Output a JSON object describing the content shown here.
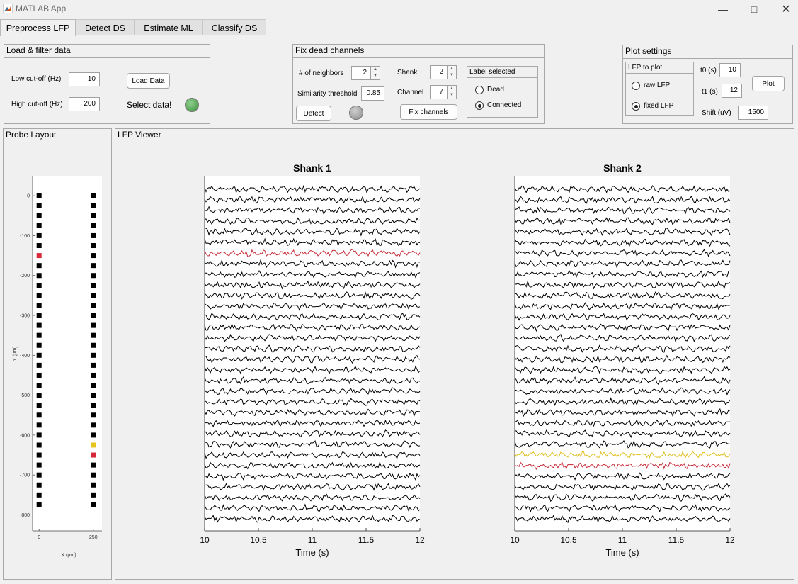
{
  "window": {
    "title": "MATLAB App",
    "minimize_icon": "minimize-icon",
    "maximize_icon": "maximize-icon",
    "close_icon": "close-icon"
  },
  "tabs": [
    {
      "label": "Preprocess LFP",
      "active": true
    },
    {
      "label": "Detect DS",
      "active": false
    },
    {
      "label": "Estimate ML",
      "active": false
    },
    {
      "label": "Classify DS",
      "active": false
    }
  ],
  "load_filter": {
    "title": "Load & filter data",
    "low_label": "Low cut-off (Hz)",
    "low_value": "10",
    "high_label": "High cut-off (Hz)",
    "high_value": "200",
    "load_button": "Load Data",
    "status_label": "Select data!",
    "status_lamp_color": "#3f8f3f"
  },
  "fix_dead": {
    "title": "Fix dead channels",
    "neighbors_label": "# of neighbors",
    "neighbors_value": "2",
    "similarity_label": "Similarity threshold",
    "similarity_value": "0.85",
    "detect_button": "Detect",
    "detect_lamp_color": "#8c8c8c",
    "shank_label": "Shank",
    "shank_value": "2",
    "channel_label": "Channel",
    "channel_value": "7",
    "fix_button": "Fix channels",
    "label_group_title": "Label selected",
    "options": [
      {
        "label": "Dead",
        "selected": false
      },
      {
        "label": "Connected",
        "selected": true
      }
    ]
  },
  "plot_settings": {
    "title": "Plot settings",
    "lfp_group_title": "LFP to plot",
    "options": [
      {
        "label": "raw LFP",
        "selected": false
      },
      {
        "label": "fixed LFP",
        "selected": true
      }
    ],
    "t0_label": "t0 (s)",
    "t0_value": "10",
    "t1_label": "t1 (s)",
    "t1_value": "12",
    "shift_label": "Shift (uV)",
    "shift_value": "1500",
    "plot_button": "Plot"
  },
  "probe_layout": {
    "title": "Probe Layout",
    "ylabel": "Y (µm)",
    "xlabel": "X (µm)",
    "y_ticks": [
      "0",
      "-100",
      "-200",
      "-300",
      "-400",
      "-500",
      "-600",
      "-700",
      "-800"
    ],
    "x_ticks": [
      "0",
      "250"
    ],
    "colors": {
      "normal": "#000000",
      "dead": "#d62839",
      "selected": "#e8c51e"
    }
  },
  "lfp_viewer": {
    "title": "LFP Viewer",
    "colors": {
      "trace": "#000000",
      "dead": "#c72e3a",
      "selected": "#e0c020"
    }
  },
  "chart_data": [
    {
      "type": "scatter",
      "title": "",
      "xlabel": "X (µm)",
      "ylabel": "Y (µm)",
      "xlim": [
        -30,
        290
      ],
      "ylim": [
        -840,
        50
      ],
      "series": [
        {
          "x": 0,
          "y": [
            0,
            -25,
            -50,
            -75,
            -100,
            -125,
            -150,
            -175,
            -200,
            -225,
            -250,
            -275,
            -300,
            -325,
            -350,
            -375,
            -400,
            -425,
            -450,
            -475,
            -500,
            -525,
            -550,
            -575,
            -600,
            -625,
            -650,
            -675,
            -700,
            -725,
            -750,
            -775
          ],
          "dead_y": [
            -150
          ]
        },
        {
          "x": 250,
          "y": [
            0,
            -25,
            -50,
            -75,
            -100,
            -125,
            -150,
            -175,
            -200,
            -225,
            -250,
            -275,
            -300,
            -325,
            -350,
            -375,
            -400,
            -425,
            -450,
            -475,
            -500,
            -525,
            -550,
            -575,
            -600,
            -625,
            -650,
            -675,
            -700,
            -725,
            -750,
            -775
          ],
          "dead_y": [
            -650
          ],
          "selected_y": [
            -625
          ]
        }
      ]
    },
    {
      "type": "line",
      "title": "Shank 1",
      "xlabel": "Time (s)",
      "xlim": [
        10,
        12
      ],
      "x_ticks": [
        "10",
        "10.5",
        "11",
        "11.5",
        "12"
      ],
      "channels": 32,
      "dead_channel": 6,
      "selected_channel": null
    },
    {
      "type": "line",
      "title": "Shank 2",
      "xlabel": "Time (s)",
      "xlim": [
        10,
        12
      ],
      "x_ticks": [
        "10",
        "10.5",
        "11",
        "11.5",
        "12"
      ],
      "channels": 32,
      "dead_channel": 26,
      "selected_channel": 25
    }
  ]
}
